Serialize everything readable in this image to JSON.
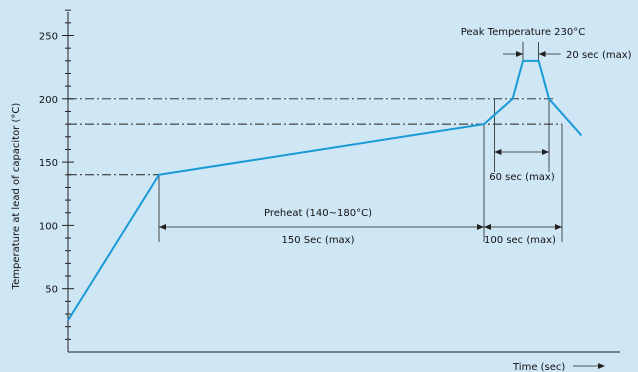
{
  "chart_data": {
    "type": "line",
    "title": "",
    "ylabel": "Temperature at lead of capacitor (°C)",
    "xlabel": "Time (sec)",
    "ylim": [
      0,
      280
    ],
    "yticks": [
      50,
      100,
      150,
      200,
      250
    ],
    "grid": false,
    "legend": "none",
    "colors": {
      "curve": "#1a9ad6",
      "background": "#cfe6f5",
      "lines": "#222222"
    },
    "series": [
      {
        "values_note": "",
        "x": [
          0,
          70,
          320,
          342,
          350,
          362,
          370,
          395
        ],
        "y": [
          25,
          140,
          180,
          200,
          230,
          230,
          200,
          171
        ]
      }
    ],
    "reference_levels": [
      140,
      180,
      200
    ],
    "annotations": {
      "peak": "Peak Temperature 230°C",
      "peak_time": "20 sec (max)",
      "above200": "60 sec (max)",
      "preheat": "Preheat (140~180°C)",
      "preheat_time": "150 Sec (max)",
      "above180": "100 sec (max)"
    }
  }
}
